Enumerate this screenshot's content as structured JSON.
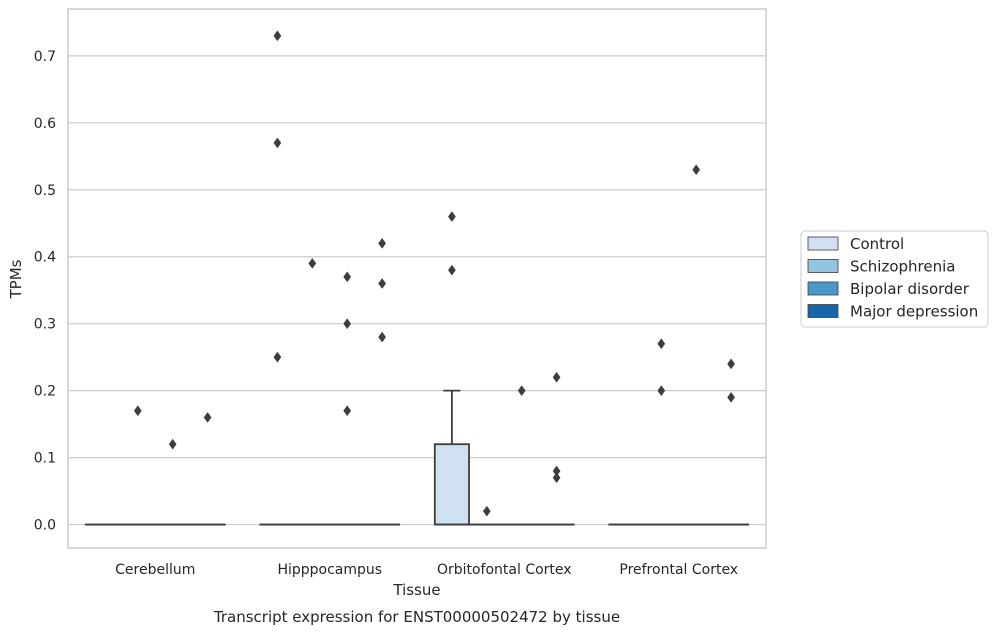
{
  "chart_data": {
    "type": "box",
    "caption": "Transcript expression for ENST00000502472 by tissue",
    "xlabel": "Tissue",
    "ylabel": "TPMs",
    "ylim": [
      -0.035,
      0.77
    ],
    "yticks": [
      "0.0",
      "0.1",
      "0.2",
      "0.3",
      "0.4",
      "0.5",
      "0.6",
      "0.7"
    ],
    "categories": [
      "Cerebellum",
      "Hipppocampus",
      "Orbitofontal Cortex",
      "Prefrontal Cortex"
    ],
    "grid": true,
    "legend_position": "right",
    "series": [
      {
        "name": "Control",
        "color": "#d0e1f2",
        "boxes": [
          {
            "q1": 0,
            "median": 0,
            "q3": 0,
            "whisker_low": 0,
            "whisker_high": 0,
            "outliers": []
          },
          {
            "q1": 0,
            "median": 0,
            "q3": 0,
            "whisker_low": 0,
            "whisker_high": 0,
            "outliers": [
              0.25,
              0.57,
              0.73
            ]
          },
          {
            "q1": 0,
            "median": 0,
            "q3": 0.12,
            "whisker_low": 0,
            "whisker_high": 0.2,
            "outliers": [
              0.38,
              0.46
            ]
          },
          {
            "q1": 0,
            "median": 0,
            "q3": 0,
            "whisker_low": 0,
            "whisker_high": 0,
            "outliers": []
          }
        ]
      },
      {
        "name": "Schizophrenia",
        "color": "#94c4df",
        "boxes": [
          {
            "q1": 0,
            "median": 0,
            "q3": 0,
            "whisker_low": 0,
            "whisker_high": 0,
            "outliers": [
              0.17
            ]
          },
          {
            "q1": 0,
            "median": 0,
            "q3": 0,
            "whisker_low": 0,
            "whisker_high": 0,
            "outliers": [
              0.39
            ]
          },
          {
            "q1": 0,
            "median": 0,
            "q3": 0,
            "whisker_low": 0,
            "whisker_high": 0,
            "outliers": [
              0.02
            ]
          },
          {
            "q1": 0,
            "median": 0,
            "q3": 0,
            "whisker_low": 0,
            "whisker_high": 0,
            "outliers": [
              0.2,
              0.27
            ]
          }
        ]
      },
      {
        "name": "Bipolar disorder",
        "color": "#4a98c9",
        "boxes": [
          {
            "q1": 0,
            "median": 0,
            "q3": 0,
            "whisker_low": 0,
            "whisker_high": 0,
            "outliers": [
              0.12
            ]
          },
          {
            "q1": 0,
            "median": 0,
            "q3": 0,
            "whisker_low": 0,
            "whisker_high": 0,
            "outliers": [
              0.17,
              0.3,
              0.37
            ]
          },
          {
            "q1": 0,
            "median": 0,
            "q3": 0,
            "whisker_low": 0,
            "whisker_high": 0,
            "outliers": [
              0.2
            ]
          },
          {
            "q1": 0,
            "median": 0,
            "q3": 0,
            "whisker_low": 0,
            "whisker_high": 0,
            "outliers": [
              0.53
            ]
          }
        ]
      },
      {
        "name": "Major depression",
        "color": "#1764ab",
        "boxes": [
          {
            "q1": 0,
            "median": 0,
            "q3": 0,
            "whisker_low": 0,
            "whisker_high": 0,
            "outliers": [
              0.16
            ]
          },
          {
            "q1": 0,
            "median": 0,
            "q3": 0,
            "whisker_low": 0,
            "whisker_high": 0,
            "outliers": [
              0.28,
              0.36,
              0.42
            ]
          },
          {
            "q1": 0,
            "median": 0,
            "q3": 0,
            "whisker_low": 0,
            "whisker_high": 0,
            "outliers": [
              0.07,
              0.08,
              0.22
            ]
          },
          {
            "q1": 0,
            "median": 0,
            "q3": 0,
            "whisker_low": 0,
            "whisker_high": 0,
            "outliers": [
              0.19,
              0.24
            ]
          }
        ]
      }
    ]
  }
}
